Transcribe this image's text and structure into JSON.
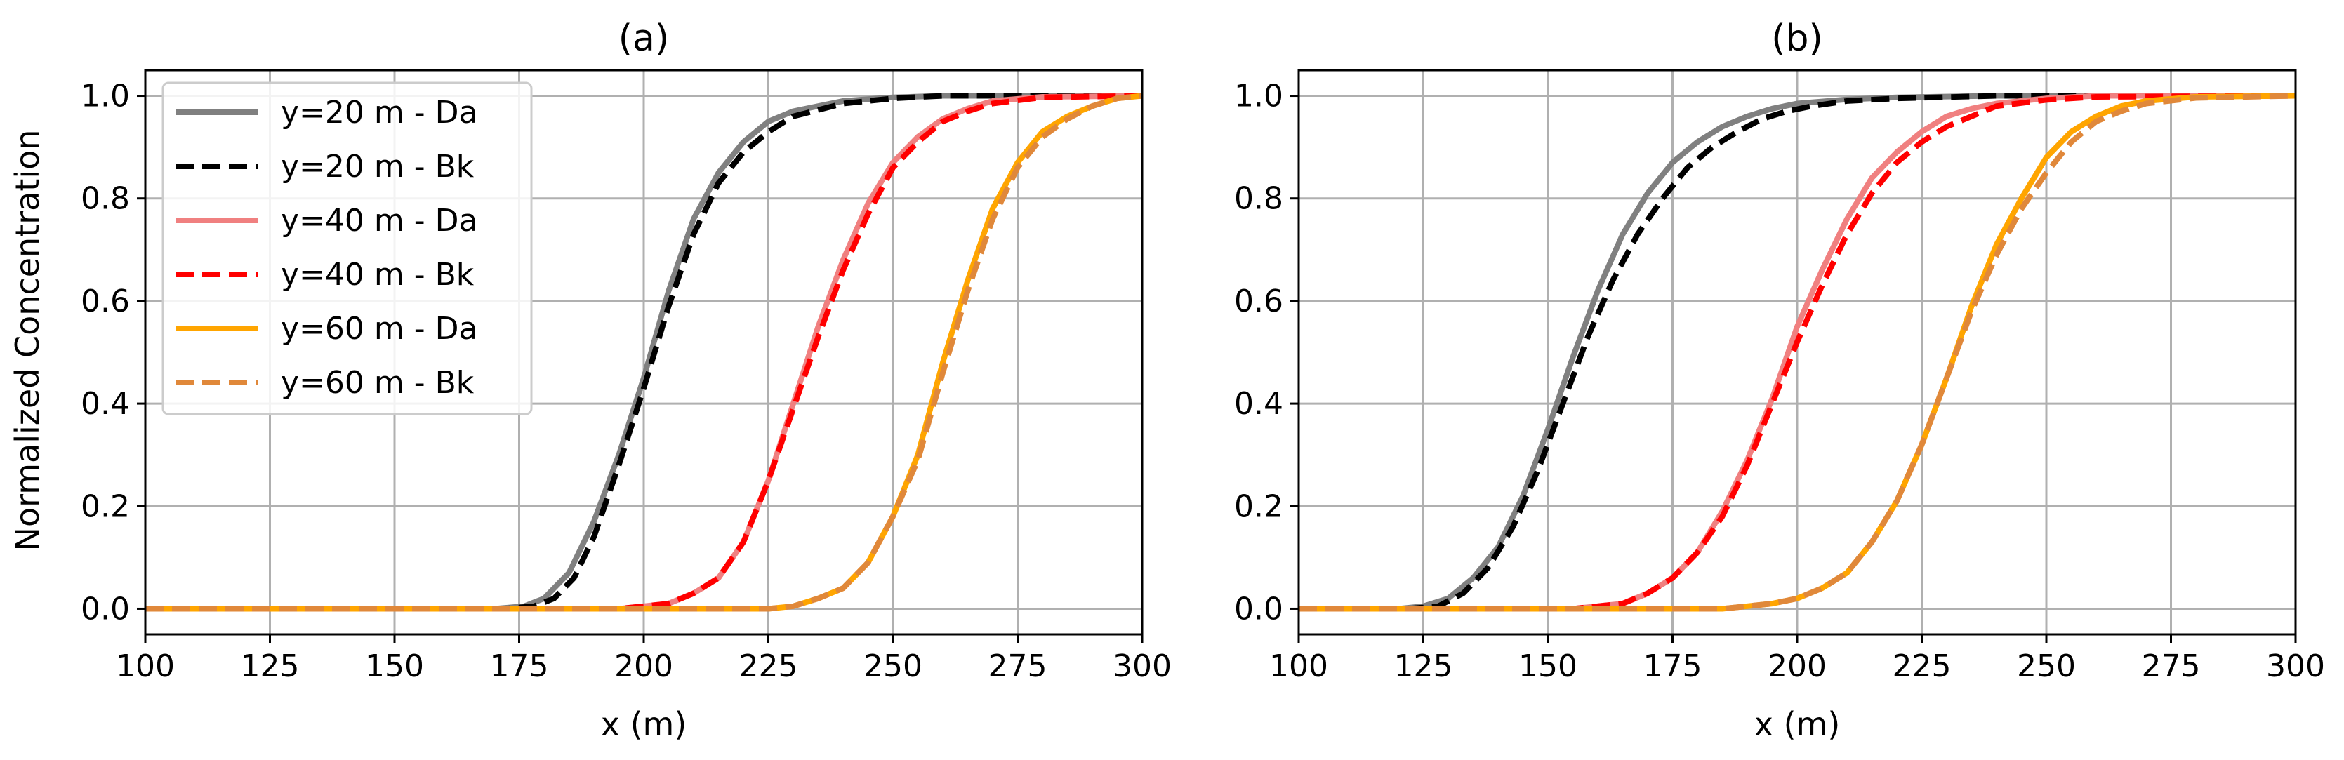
{
  "figure": {
    "ylabel": "Normalized Concentration"
  },
  "chart_data": [
    {
      "type": "line",
      "title": "(a)",
      "xlabel": "x (m)",
      "ylabel": "Normalized Concentration",
      "xlim": [
        100,
        300
      ],
      "ylim": [
        -0.05,
        1.05
      ],
      "xticks": [
        100,
        125,
        150,
        175,
        200,
        225,
        250,
        275,
        300
      ],
      "yticks": [
        0.0,
        0.2,
        0.4,
        0.6,
        0.8,
        1.0
      ],
      "xtick_labels": [
        "100",
        "125",
        "150",
        "175",
        "200",
        "225",
        "250",
        "275",
        "300"
      ],
      "ytick_labels": [
        "0.0",
        "0.2",
        "0.4",
        "0.6",
        "0.8",
        "1.0"
      ],
      "grid": true,
      "legend_position": "top-left",
      "series": [
        {
          "name": "y=20 m - Da",
          "color": "#808080",
          "dash": "solid",
          "x": [
            100,
            170,
            176,
            180,
            185,
            190,
            195,
            200,
            205,
            210,
            215,
            220,
            225,
            230,
            240,
            250,
            260,
            300
          ],
          "y": [
            0,
            0,
            0.005,
            0.02,
            0.07,
            0.17,
            0.3,
            0.45,
            0.62,
            0.76,
            0.85,
            0.91,
            0.95,
            0.97,
            0.99,
            0.997,
            1.0,
            1.0
          ]
        },
        {
          "name": "y=20 m - Bk",
          "color": "#000000",
          "dash": "dashed",
          "x": [
            100,
            172,
            178,
            182,
            186,
            190,
            195,
            200,
            205,
            210,
            215,
            220,
            225,
            230,
            240,
            250,
            260,
            300
          ],
          "y": [
            0,
            0,
            0.005,
            0.02,
            0.06,
            0.14,
            0.28,
            0.43,
            0.59,
            0.73,
            0.83,
            0.89,
            0.93,
            0.96,
            0.985,
            0.995,
            1.0,
            1.0
          ]
        },
        {
          "name": "y=40 m - Da",
          "color": "#f08080",
          "dash": "solid",
          "x": [
            100,
            195,
            200,
            205,
            210,
            215,
            220,
            225,
            230,
            235,
            240,
            245,
            250,
            255,
            260,
            265,
            270,
            280,
            300
          ],
          "y": [
            0,
            0,
            0.005,
            0.01,
            0.03,
            0.06,
            0.13,
            0.25,
            0.4,
            0.55,
            0.68,
            0.79,
            0.87,
            0.92,
            0.955,
            0.975,
            0.99,
            0.998,
            1.0
          ]
        },
        {
          "name": "y=40 m - Bk",
          "color": "#ff0000",
          "dash": "dashed",
          "x": [
            100,
            195,
            200,
            205,
            210,
            215,
            220,
            225,
            230,
            235,
            240,
            245,
            250,
            255,
            260,
            265,
            270,
            280,
            300
          ],
          "y": [
            0,
            0,
            0.005,
            0.01,
            0.03,
            0.06,
            0.13,
            0.25,
            0.39,
            0.53,
            0.66,
            0.77,
            0.86,
            0.91,
            0.95,
            0.97,
            0.985,
            0.997,
            1.0
          ]
        },
        {
          "name": "y=60 m - Da",
          "color": "#ffa500",
          "dash": "solid",
          "x": [
            100,
            225,
            230,
            235,
            240,
            245,
            250,
            255,
            260,
            265,
            270,
            275,
            280,
            285,
            290,
            295,
            300
          ],
          "y": [
            0,
            0,
            0.005,
            0.02,
            0.04,
            0.09,
            0.18,
            0.3,
            0.48,
            0.64,
            0.78,
            0.87,
            0.93,
            0.96,
            0.98,
            0.995,
            1.0
          ]
        },
        {
          "name": "y=60 m - Bk",
          "color": "#e0883a",
          "dash": "dashed",
          "x": [
            100,
            225,
            230,
            235,
            240,
            245,
            250,
            255,
            260,
            265,
            270,
            275,
            280,
            285,
            290,
            295,
            300
          ],
          "y": [
            0,
            0,
            0.005,
            0.02,
            0.04,
            0.09,
            0.18,
            0.29,
            0.46,
            0.62,
            0.76,
            0.86,
            0.92,
            0.955,
            0.98,
            0.995,
            1.0
          ]
        }
      ]
    },
    {
      "type": "line",
      "title": "(b)",
      "xlabel": "x (m)",
      "ylabel": "",
      "xlim": [
        100,
        300
      ],
      "ylim": [
        -0.05,
        1.05
      ],
      "xticks": [
        100,
        125,
        150,
        175,
        200,
        225,
        250,
        275,
        300
      ],
      "yticks": [
        0.0,
        0.2,
        0.4,
        0.6,
        0.8,
        1.0
      ],
      "xtick_labels": [
        "100",
        "125",
        "150",
        "175",
        "200",
        "225",
        "250",
        "275",
        "300"
      ],
      "ytick_labels": [
        "0.0",
        "0.2",
        "0.4",
        "0.6",
        "0.8",
        "1.0"
      ],
      "grid": true,
      "series": [
        {
          "name": "y=20 m - Da",
          "color": "#808080",
          "dash": "solid",
          "x": [
            100,
            120,
            125,
            130,
            135,
            140,
            145,
            150,
            155,
            160,
            165,
            170,
            175,
            180,
            185,
            190,
            195,
            200,
            210,
            220,
            240,
            300
          ],
          "y": [
            0,
            0,
            0.005,
            0.02,
            0.06,
            0.12,
            0.22,
            0.35,
            0.49,
            0.62,
            0.73,
            0.81,
            0.87,
            0.91,
            0.94,
            0.96,
            0.975,
            0.985,
            0.993,
            0.997,
            1.0,
            1.0
          ]
        },
        {
          "name": "y=20 m - Bk",
          "color": "#000000",
          "dash": "dashed",
          "x": [
            100,
            122,
            128,
            133,
            138,
            143,
            148,
            153,
            158,
            163,
            168,
            173,
            178,
            183,
            188,
            193,
            198,
            203,
            210,
            220,
            240,
            300
          ],
          "y": [
            0,
            0,
            0.005,
            0.03,
            0.08,
            0.16,
            0.27,
            0.4,
            0.53,
            0.64,
            0.73,
            0.8,
            0.86,
            0.9,
            0.93,
            0.955,
            0.97,
            0.98,
            0.99,
            0.995,
            1.0,
            1.0
          ]
        },
        {
          "name": "y=40 m - Da",
          "color": "#f08080",
          "dash": "solid",
          "x": [
            100,
            155,
            160,
            165,
            170,
            175,
            180,
            185,
            190,
            195,
            200,
            205,
            210,
            215,
            220,
            225,
            230,
            235,
            240,
            250,
            260,
            300
          ],
          "y": [
            0,
            0,
            0.005,
            0.01,
            0.03,
            0.06,
            0.11,
            0.19,
            0.29,
            0.41,
            0.55,
            0.66,
            0.76,
            0.84,
            0.89,
            0.93,
            0.96,
            0.975,
            0.985,
            0.995,
            1.0,
            1.0
          ]
        },
        {
          "name": "y=40 m - Bk",
          "color": "#ff0000",
          "dash": "dashed",
          "x": [
            100,
            155,
            160,
            165,
            170,
            175,
            180,
            185,
            190,
            195,
            200,
            205,
            210,
            215,
            220,
            225,
            230,
            235,
            240,
            250,
            260,
            300
          ],
          "y": [
            0,
            0,
            0.005,
            0.01,
            0.03,
            0.06,
            0.11,
            0.18,
            0.28,
            0.4,
            0.52,
            0.63,
            0.73,
            0.81,
            0.87,
            0.91,
            0.94,
            0.96,
            0.98,
            0.992,
            0.998,
            1.0
          ]
        },
        {
          "name": "y=60 m - Da",
          "color": "#ffa500",
          "dash": "solid",
          "x": [
            100,
            185,
            190,
            195,
            200,
            205,
            210,
            215,
            220,
            225,
            230,
            235,
            240,
            245,
            250,
            255,
            260,
            265,
            270,
            280,
            300
          ],
          "y": [
            0,
            0,
            0.005,
            0.01,
            0.02,
            0.04,
            0.07,
            0.13,
            0.21,
            0.32,
            0.45,
            0.59,
            0.71,
            0.8,
            0.88,
            0.93,
            0.96,
            0.98,
            0.99,
            0.998,
            1.0
          ]
        },
        {
          "name": "y=60 m - Bk",
          "color": "#e0883a",
          "dash": "dashed",
          "x": [
            100,
            185,
            190,
            195,
            200,
            205,
            210,
            215,
            220,
            225,
            230,
            235,
            240,
            245,
            250,
            255,
            260,
            265,
            270,
            280,
            300
          ],
          "y": [
            0,
            0,
            0.005,
            0.01,
            0.02,
            0.04,
            0.07,
            0.13,
            0.21,
            0.32,
            0.45,
            0.58,
            0.69,
            0.78,
            0.85,
            0.91,
            0.95,
            0.97,
            0.985,
            0.996,
            1.0
          ]
        }
      ]
    }
  ]
}
